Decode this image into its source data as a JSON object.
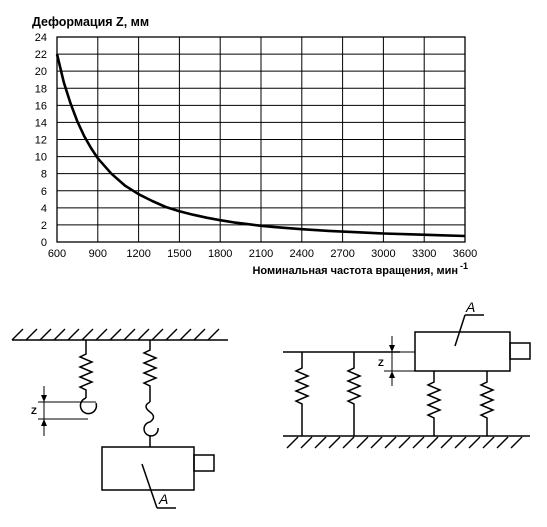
{
  "chart_data": {
    "type": "line",
    "title": "Деформация Z, мм",
    "xlabel": "Номинальная частота вращения, мин",
    "xlabel_superscript": "-1",
    "xlim": [
      600,
      3600
    ],
    "ylim": [
      0,
      24
    ],
    "xticks": [
      600,
      900,
      1200,
      1500,
      1800,
      2100,
      2400,
      2700,
      3000,
      3300,
      3600
    ],
    "yticks": [
      0,
      2,
      4,
      6,
      8,
      10,
      12,
      14,
      16,
      18,
      20,
      22,
      24
    ],
    "grid": true,
    "series": [
      {
        "x": [
          600,
          650,
          700,
          750,
          800,
          850,
          900,
          1000,
          1100,
          1200,
          1300,
          1400,
          1500,
          1600,
          1700,
          1800,
          1900,
          2000,
          2100,
          2200,
          2400,
          2600,
          2800,
          3000,
          3200,
          3400,
          3600
        ],
        "y": [
          22.0,
          18.7,
          16.2,
          14.1,
          12.4,
          11.0,
          9.8,
          8.0,
          6.6,
          5.6,
          4.8,
          4.1,
          3.6,
          3.2,
          2.85,
          2.55,
          2.3,
          2.1,
          1.9,
          1.75,
          1.5,
          1.3,
          1.15,
          1.0,
          0.9,
          0.8,
          0.7
        ]
      }
    ]
  },
  "diagram": {
    "z_label": "Z",
    "a_label": "A"
  }
}
